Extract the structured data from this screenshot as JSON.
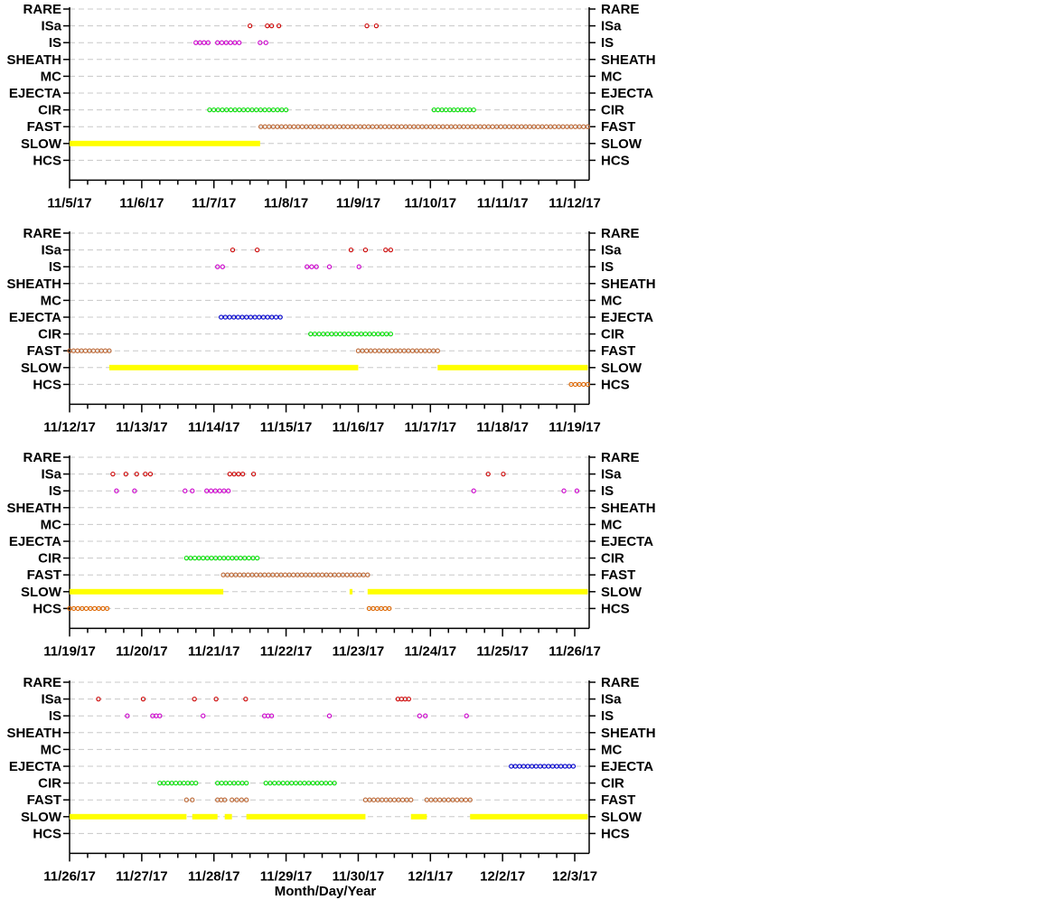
{
  "chart_data": {
    "type": "scatter",
    "categories": [
      "RARE",
      "ISa",
      "IS",
      "SHEATH",
      "MC",
      "EJECTA",
      "CIR",
      "FAST",
      "SLOW",
      "HCS"
    ],
    "xlabel": "Month/Day/Year",
    "grid": "dashed horizontal",
    "colors": {
      "ISa": "#cc0000",
      "IS": "#cc00cc",
      "EJECTA": "#0000cc",
      "CIR": "#00dd00",
      "FAST": "#bb6633",
      "SLOW": "#ffff00",
      "HCS": "#dd6600"
    },
    "panels": [
      {
        "xlim": [
          "11/5/17",
          "11/12/17"
        ],
        "tick_labels": [
          "11/5/17",
          "11/6/17",
          "11/7/17",
          "11/8/17",
          "11/9/17",
          "11/10/17",
          "11/11/17",
          "11/12/17"
        ],
        "series": [
          {
            "category": "ISa",
            "intervals": [
              [
                2.49,
                2.51
              ],
              [
                2.74,
                2.8
              ],
              [
                2.89,
                2.91
              ],
              [
                4.11,
                4.13
              ],
              [
                4.24,
                4.26
              ]
            ]
          },
          {
            "category": "IS",
            "intervals": [
              [
                1.75,
                1.92
              ],
              [
                2.05,
                2.35
              ],
              [
                2.64,
                2.72
              ]
            ]
          },
          {
            "category": "CIR",
            "intervals": [
              [
                1.94,
                3.0
              ],
              [
                5.05,
                5.6
              ]
            ]
          },
          {
            "category": "FAST",
            "intervals": [
              [
                2.65,
                7.18
              ]
            ]
          },
          {
            "category": "SLOW",
            "intervals": [
              [
                0.0,
                2.64
              ]
            ]
          }
        ]
      },
      {
        "xlim": [
          "11/12/17",
          "11/19/17"
        ],
        "tick_labels": [
          "11/12/17",
          "11/13/17",
          "11/14/17",
          "11/15/17",
          "11/16/17",
          "11/17/17",
          "11/18/17",
          "11/19/17"
        ],
        "series": [
          {
            "category": "ISa",
            "intervals": [
              [
                2.25,
                2.27
              ],
              [
                2.59,
                2.61
              ],
              [
                3.89,
                3.91
              ],
              [
                4.09,
                4.11
              ],
              [
                4.38,
                4.45
              ]
            ]
          },
          {
            "category": "IS",
            "intervals": [
              [
                2.05,
                2.12
              ],
              [
                3.29,
                3.42
              ],
              [
                3.59,
                3.61
              ],
              [
                4.0,
                4.02
              ]
            ]
          },
          {
            "category": "EJECTA",
            "intervals": [
              [
                2.1,
                2.92
              ]
            ]
          },
          {
            "category": "CIR",
            "intervals": [
              [
                3.34,
                4.45
              ]
            ]
          },
          {
            "category": "FAST",
            "intervals": [
              [
                0.0,
                0.55
              ],
              [
                4.0,
                5.1
              ]
            ]
          },
          {
            "category": "SLOW",
            "intervals": [
              [
                0.55,
                4.0
              ],
              [
                5.1,
                7.18
              ]
            ]
          },
          {
            "category": "HCS",
            "intervals": [
              [
                6.95,
                7.18
              ]
            ]
          }
        ]
      },
      {
        "xlim": [
          "11/19/17",
          "11/26/17"
        ],
        "tick_labels": [
          "11/19/17",
          "11/20/17",
          "11/21/17",
          "11/22/17",
          "11/23/17",
          "11/24/17",
          "11/25/17",
          "11/26/17"
        ],
        "series": [
          {
            "category": "ISa",
            "intervals": [
              [
                0.59,
                0.61
              ],
              [
                0.77,
                0.79
              ],
              [
                0.92,
                0.94
              ],
              [
                1.04,
                1.06
              ],
              [
                1.11,
                1.13
              ],
              [
                2.22,
                2.4
              ],
              [
                2.54,
                2.56
              ],
              [
                5.79,
                5.81
              ],
              [
                6.0,
                6.02
              ]
            ]
          },
          {
            "category": "IS",
            "intervals": [
              [
                0.64,
                0.66
              ],
              [
                0.89,
                0.91
              ],
              [
                1.59,
                1.61
              ],
              [
                1.69,
                1.71
              ],
              [
                1.9,
                2.2
              ],
              [
                5.59,
                5.61
              ],
              [
                6.84,
                6.86
              ],
              [
                7.02,
                7.04
              ]
            ]
          },
          {
            "category": "CIR",
            "intervals": [
              [
                1.62,
                2.6
              ]
            ]
          },
          {
            "category": "FAST",
            "intervals": [
              [
                2.13,
                4.13
              ]
            ]
          },
          {
            "category": "SLOW",
            "intervals": [
              [
                0.0,
                2.13
              ],
              [
                3.88,
                3.92
              ],
              [
                4.13,
                7.18
              ]
            ]
          },
          {
            "category": "HCS",
            "intervals": [
              [
                0.0,
                0.52
              ],
              [
                4.15,
                4.43
              ]
            ]
          }
        ]
      },
      {
        "xlim": [
          "11/26/17",
          "12/3/17"
        ],
        "tick_labels": [
          "11/26/17",
          "11/27/17",
          "11/28/17",
          "11/29/17",
          "11/30/17",
          "12/1/17",
          "12/2/17",
          "12/3/17"
        ],
        "series": [
          {
            "category": "ISa",
            "intervals": [
              [
                0.39,
                0.41
              ],
              [
                1.01,
                1.03
              ],
              [
                1.72,
                1.74
              ],
              [
                2.02,
                2.04
              ],
              [
                2.43,
                2.45
              ],
              [
                4.55,
                4.7
              ]
            ]
          },
          {
            "category": "IS",
            "intervals": [
              [
                0.79,
                0.81
              ],
              [
                1.15,
                1.25
              ],
              [
                1.84,
                1.86
              ],
              [
                2.7,
                2.8
              ],
              [
                3.59,
                3.61
              ],
              [
                4.85,
                4.93
              ],
              [
                5.49,
                5.51
              ]
            ]
          },
          {
            "category": "EJECTA",
            "intervals": [
              [
                6.12,
                6.98
              ]
            ]
          },
          {
            "category": "CIR",
            "intervals": [
              [
                1.25,
                1.75
              ],
              [
                2.05,
                2.45
              ],
              [
                2.72,
                3.67
              ]
            ]
          },
          {
            "category": "FAST",
            "intervals": [
              [
                1.62,
                1.7
              ],
              [
                2.05,
                2.15
              ],
              [
                2.25,
                2.45
              ],
              [
                4.1,
                4.73
              ],
              [
                4.95,
                5.55
              ]
            ]
          },
          {
            "category": "SLOW",
            "intervals": [
              [
                0.0,
                1.62
              ],
              [
                1.7,
                2.05
              ],
              [
                2.15,
                2.25
              ],
              [
                2.45,
                4.1
              ],
              [
                4.73,
                4.95
              ],
              [
                5.55,
                7.18
              ]
            ]
          }
        ]
      }
    ]
  }
}
